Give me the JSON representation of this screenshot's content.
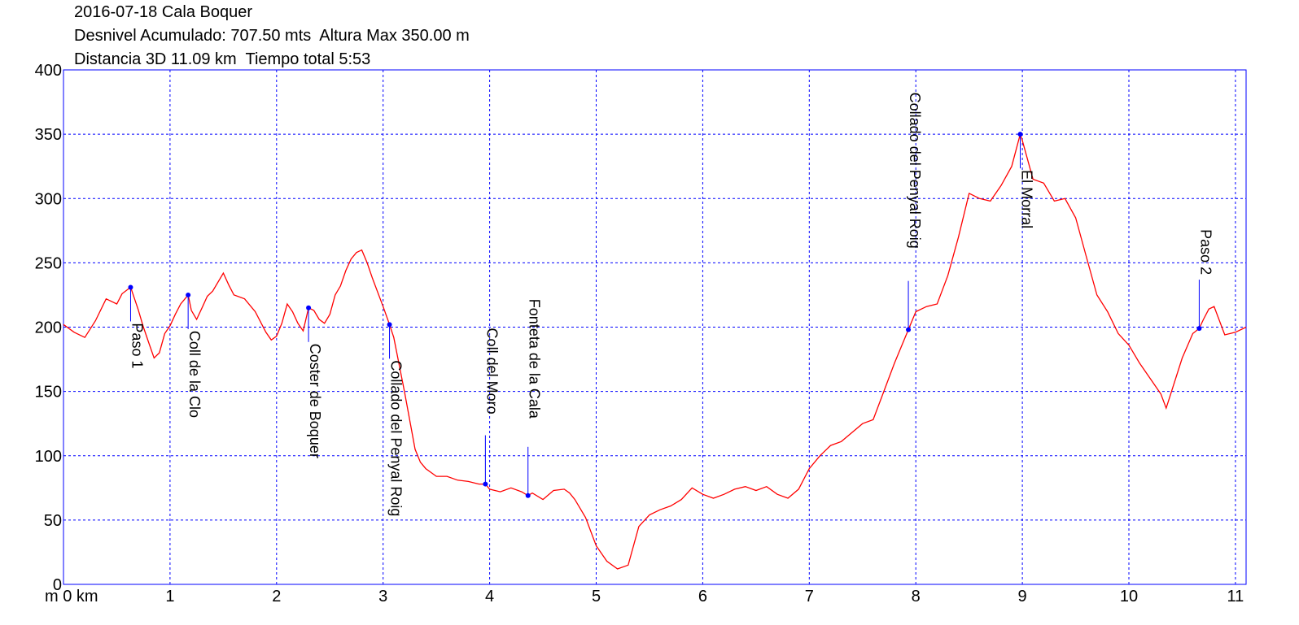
{
  "header": {
    "line1": "2016-07-18 Cala Boquer",
    "line2": "Desnivel Acumulado: 707.50 mts  Altura Max 350.00 m",
    "line3": "Distancia 3D 11.09 km  Tiempo total 5:53"
  },
  "chart_data": {
    "type": "line",
    "xlim": [
      0,
      11.1
    ],
    "ylim": [
      0,
      400
    ],
    "grid": true,
    "y_ticks": [
      {
        "v": 0,
        "label": "0"
      },
      {
        "v": 50,
        "label": "50"
      },
      {
        "v": 100,
        "label": "100"
      },
      {
        "v": 150,
        "label": "150"
      },
      {
        "v": 200,
        "label": "200"
      },
      {
        "v": 250,
        "label": "250"
      },
      {
        "v": 300,
        "label": "300"
      },
      {
        "v": 350,
        "label": "350"
      },
      {
        "v": 400,
        "label": "400"
      }
    ],
    "x_ticks": [
      {
        "v": 1,
        "label": "1"
      },
      {
        "v": 2,
        "label": "2"
      },
      {
        "v": 3,
        "label": "3"
      },
      {
        "v": 4,
        "label": "4"
      },
      {
        "v": 5,
        "label": "5"
      },
      {
        "v": 6,
        "label": "6"
      },
      {
        "v": 7,
        "label": "7"
      },
      {
        "v": 8,
        "label": "8"
      },
      {
        "v": 9,
        "label": "9"
      },
      {
        "v": 10,
        "label": "10"
      },
      {
        "v": 11,
        "label": "11"
      }
    ],
    "x_origin_label": "m 0 km",
    "line_color": "#ff0000",
    "grid_color": "#0000ff",
    "waypoint_color": "#0000ff",
    "series": [
      {
        "x": [
          0,
          0.1,
          0.2,
          0.3,
          0.4,
          0.5,
          0.55,
          0.63,
          0.7,
          0.75,
          0.8,
          0.85,
          0.9,
          0.95,
          1.0,
          1.05,
          1.1,
          1.17,
          1.2,
          1.25,
          1.3,
          1.35,
          1.4,
          1.5,
          1.55,
          1.6,
          1.7,
          1.8,
          1.9,
          1.95,
          2.0,
          2.05,
          2.1,
          2.15,
          2.2,
          2.25,
          2.3,
          2.35,
          2.4,
          2.45,
          2.5,
          2.55,
          2.6,
          2.65,
          2.7,
          2.75,
          2.8,
          2.85,
          2.9,
          3.0,
          3.06,
          3.1,
          3.2,
          3.3,
          3.35,
          3.4,
          3.5,
          3.6,
          3.7,
          3.8,
          3.9,
          3.96,
          4.0,
          4.1,
          4.2,
          4.3,
          4.36,
          4.4,
          4.5,
          4.6,
          4.7,
          4.75,
          4.8,
          4.9,
          5.0,
          5.1,
          5.2,
          5.3,
          5.4,
          5.5,
          5.6,
          5.7,
          5.8,
          5.9,
          6.0,
          6.1,
          6.2,
          6.3,
          6.4,
          6.5,
          6.6,
          6.7,
          6.8,
          6.9,
          7.0,
          7.1,
          7.2,
          7.3,
          7.4,
          7.5,
          7.6,
          7.7,
          7.8,
          7.93,
          8.0,
          8.1,
          8.2,
          8.3,
          8.4,
          8.5,
          8.6,
          8.7,
          8.8,
          8.9,
          8.98,
          9.0,
          9.1,
          9.2,
          9.3,
          9.4,
          9.5,
          9.6,
          9.7,
          9.8,
          9.9,
          10.0,
          10.1,
          10.2,
          10.3,
          10.35,
          10.4,
          10.5,
          10.6,
          10.66,
          10.7,
          10.75,
          10.8,
          10.9,
          11.0,
          11.1
        ],
        "y": [
          202,
          196,
          192,
          205,
          222,
          218,
          226,
          231,
          214,
          200,
          188,
          176,
          180,
          195,
          201,
          210,
          218,
          225,
          213,
          206,
          215,
          224,
          228,
          242,
          233,
          225,
          222,
          212,
          196,
          190,
          193,
          203,
          218,
          212,
          203,
          197,
          215,
          213,
          206,
          203,
          210,
          225,
          232,
          244,
          253,
          258,
          260,
          250,
          238,
          216,
          202,
          192,
          150,
          105,
          95,
          90,
          84,
          84,
          81,
          80,
          78,
          78,
          74,
          72,
          75,
          72,
          69,
          71,
          66,
          73,
          74,
          71,
          66,
          52,
          30,
          18,
          12,
          15,
          45,
          54,
          58,
          61,
          66,
          75,
          70,
          67,
          70,
          74,
          76,
          73,
          76,
          70,
          67,
          74,
          90,
          100,
          108,
          111,
          118,
          125,
          128,
          150,
          172,
          198,
          212,
          216,
          218,
          240,
          270,
          304,
          300,
          298,
          310,
          325,
          350,
          345,
          315,
          312,
          298,
          300,
          285,
          255,
          225,
          212,
          195,
          186,
          172,
          160,
          148,
          137,
          150,
          176,
          195,
          199,
          206,
          214,
          216,
          194,
          196,
          200
        ]
      }
    ],
    "waypoints": [
      {
        "x": 0.63,
        "y": 231,
        "label": "Paso 1",
        "dir": "down"
      },
      {
        "x": 1.17,
        "y": 225,
        "label": "Coll de la Clo",
        "dir": "down"
      },
      {
        "x": 2.3,
        "y": 215,
        "label": "Coster de Boquer",
        "dir": "down"
      },
      {
        "x": 3.06,
        "y": 202,
        "label": "Collado del Penyal Roig",
        "dir": "down"
      },
      {
        "x": 3.96,
        "y": 78,
        "label": "Coll del Moro",
        "dir": "up"
      },
      {
        "x": 4.36,
        "y": 69,
        "label": "Fonteta de la Cala",
        "dir": "up"
      },
      {
        "x": 7.93,
        "y": 198,
        "label": "Collado del Penyal Roig",
        "dir": "up"
      },
      {
        "x": 8.98,
        "y": 350,
        "label": "El Morral",
        "dir": "down"
      },
      {
        "x": 10.66,
        "y": 199,
        "label": "Paso 2",
        "dir": "up"
      }
    ]
  }
}
